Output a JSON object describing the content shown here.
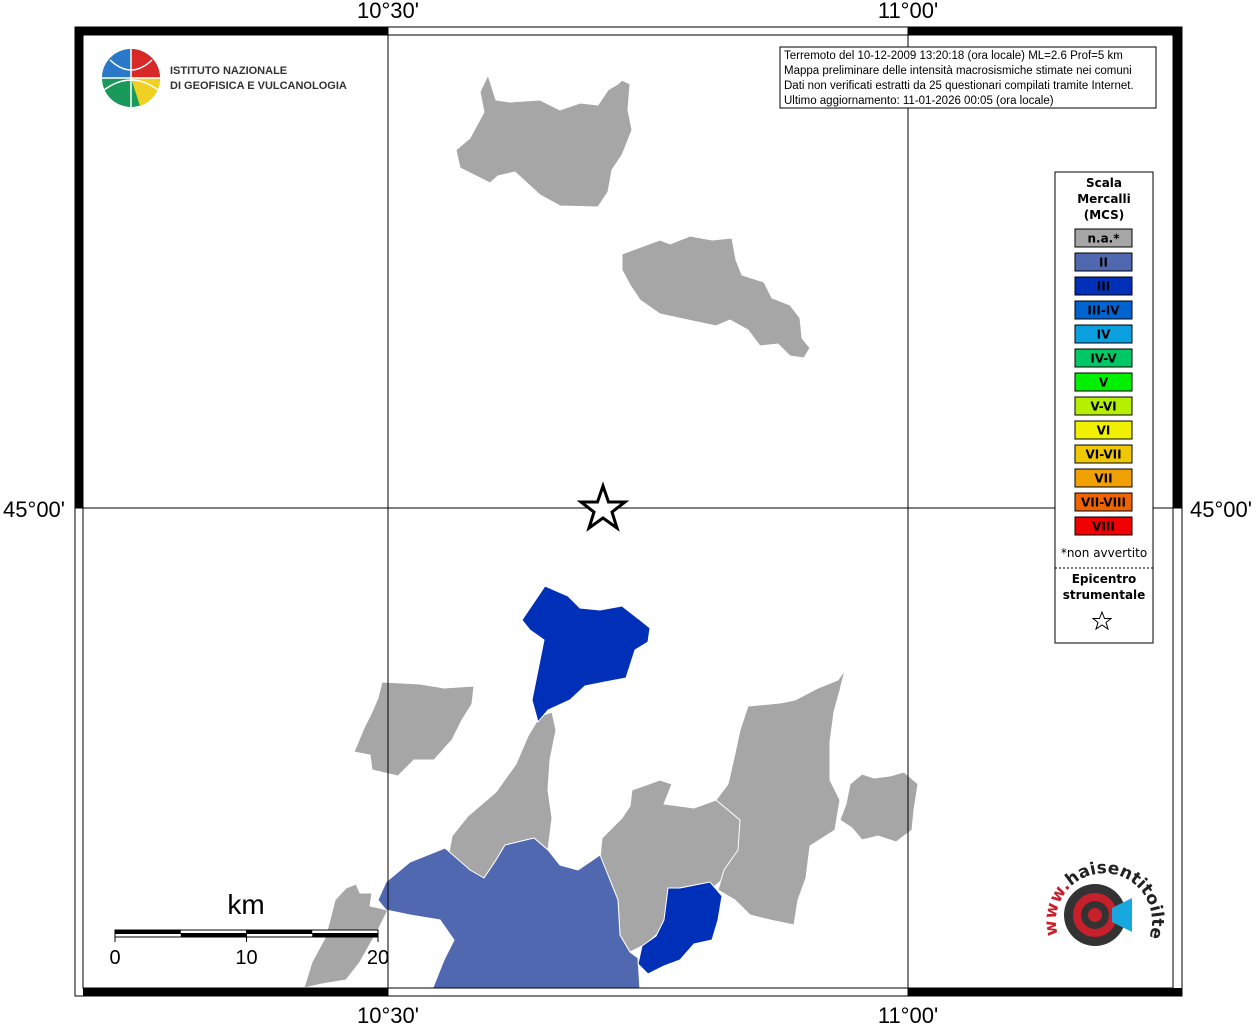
{
  "axes": {
    "top": [
      "10°30'",
      "11°00'"
    ],
    "bottom": [
      "10°30'",
      "11°00'"
    ],
    "left": [
      "45°00'"
    ],
    "right": [
      "45°00'"
    ]
  },
  "info": [
    "Terremoto del 10-12-2009 13:20:18 (ora locale) ML=2.6 Prof=5 km",
    "Mappa preliminare delle intensità macrosismiche stimate nei comuni",
    "Dati non verificati estratti da 25 questionari compilati tramite Internet.",
    "Ultimo aggiornamento: 11-01-2026 00:05 (ora locale)"
  ],
  "logo": [
    "ISTITUTO NAZIONALE",
    "DI GEOFISICA E VULCANOLOGIA"
  ],
  "legend": {
    "title": [
      "Scala",
      "Mercalli",
      "(MCS)"
    ],
    "entries": [
      {
        "label": "n.a.*",
        "color": "#a6a6a6"
      },
      {
        "label": "II",
        "color": "#5068b0"
      },
      {
        "label": "III",
        "color": "#0030b8"
      },
      {
        "label": "III-IV",
        "color": "#0064d0"
      },
      {
        "label": "IV",
        "color": "#0aa0e0"
      },
      {
        "label": "IV-V",
        "color": "#00c864"
      },
      {
        "label": "V",
        "color": "#00f000"
      },
      {
        "label": "V-VI",
        "color": "#b4f000"
      },
      {
        "label": "VI",
        "color": "#f0f000"
      },
      {
        "label": "VI-VII",
        "color": "#f0c800"
      },
      {
        "label": "VII",
        "color": "#f0a000"
      },
      {
        "label": "VII-VIII",
        "color": "#f06400"
      },
      {
        "label": "VIII",
        "color": "#f00000"
      }
    ],
    "note": "*non avvertito",
    "epicenter": [
      "Epicentro",
      "strumentale"
    ]
  },
  "scale_bar": {
    "unit": "km",
    "ticks": [
      0,
      10,
      20
    ]
  },
  "site_logo": {
    "prefix": "www.",
    "text": "haisentitoilterremoto.it"
  }
}
